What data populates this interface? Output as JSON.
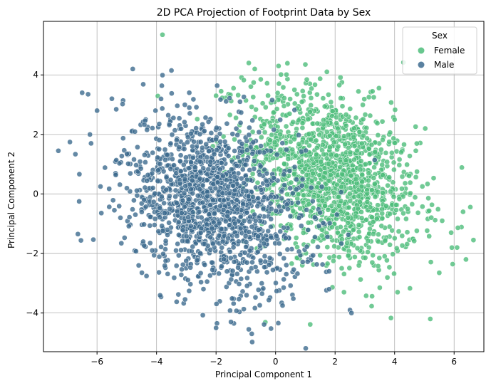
{
  "chart_data": {
    "type": "scatter",
    "title": "2D PCA Projection of Footprint Data by Sex",
    "xlabel": "Principal Component 1",
    "ylabel": "Principal Component 2",
    "xlim": [
      -7.8,
      7.0
    ],
    "ylim": [
      -5.3,
      5.8
    ],
    "xticks": [
      -6,
      -4,
      -2,
      0,
      2,
      4,
      6
    ],
    "yticks": [
      -4,
      -2,
      0,
      2,
      4
    ],
    "grid": true,
    "legend": {
      "title": "Sex",
      "position": "top-right"
    },
    "series": [
      {
        "name": "Female",
        "color": "#4dbd7a",
        "distribution": {
          "count": 1450,
          "x_mean": 1.9,
          "y_mean": 0.6,
          "x_sd": 1.45,
          "y_sd": 1.45,
          "corr": -0.35
        },
        "points": [
          [
            -3.8,
            5.35
          ],
          [
            -0.9,
            4.4
          ],
          [
            1.0,
            4.35
          ],
          [
            0.1,
            4.3
          ],
          [
            -0.7,
            4.2
          ],
          [
            5.5,
            -2.65
          ],
          [
            5.2,
            -4.2
          ],
          [
            6.65,
            -1.55
          ],
          [
            6.4,
            -2.2
          ],
          [
            6.3,
            -0.6
          ],
          [
            2.3,
            -3.3
          ],
          [
            4.0,
            2.5
          ],
          [
            3.3,
            3.25
          ],
          [
            -2.0,
            3.3
          ],
          [
            5.6,
            -0.9
          ],
          [
            4.1,
            -3.3
          ],
          [
            5.9,
            -1.3
          ],
          [
            6.1,
            -1.8
          ],
          [
            2.8,
            -2.4
          ],
          [
            3.5,
            -3.15
          ]
        ]
      },
      {
        "name": "Male",
        "color": "#3d6b8f",
        "distribution": {
          "count": 1450,
          "x_mean": -2.1,
          "y_mean": -0.3,
          "x_sd": 1.5,
          "y_sd": 1.45,
          "corr": -0.3
        },
        "points": [
          [
            -7.3,
            1.45
          ],
          [
            -6.6,
            -0.25
          ],
          [
            -6.5,
            3.4
          ],
          [
            -6.3,
            3.35
          ],
          [
            -6.2,
            1.7
          ],
          [
            -4.8,
            4.2
          ],
          [
            -3.5,
            4.15
          ],
          [
            -2.9,
            3.4
          ],
          [
            -2.9,
            2.9
          ],
          [
            -0.9,
            -4.55
          ],
          [
            -0.8,
            -4.7
          ],
          [
            -1.4,
            -4.35
          ],
          [
            -2.0,
            -4.5
          ],
          [
            1.8,
            -3.2
          ],
          [
            2.5,
            -3.9
          ],
          [
            2.55,
            -4.0
          ],
          [
            -4.6,
            -2.4
          ],
          [
            -6.0,
            2.8
          ],
          [
            -5.5,
            3.2
          ],
          [
            -1.5,
            -4.3
          ]
        ]
      }
    ]
  }
}
